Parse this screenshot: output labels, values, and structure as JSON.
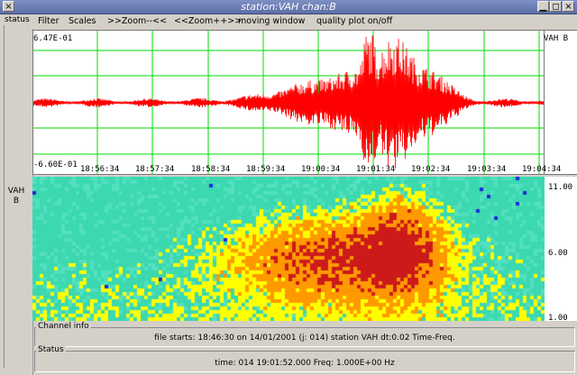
{
  "window": {
    "title": "station:VAH  chan:B",
    "close_glyph": "×",
    "minimize_glyph": "▁",
    "restore_glyph": "◻",
    "close2_glyph": "×"
  },
  "status_tab": "status",
  "menu": [
    {
      "label": "Filter"
    },
    {
      "label": "Scales"
    },
    {
      "label": ">>Zoom--<<"
    },
    {
      "label": "<<Zoom++>>"
    },
    {
      "label": "moving window"
    },
    {
      "label": "quality plot on/off"
    }
  ],
  "waveform": {
    "max_label": "6.47E-01",
    "min_label": "-6.60E-01",
    "station_label": "VAH B",
    "time_ticks": [
      "18:56:34",
      "18:57:34",
      "18:58:34",
      "18:59:34",
      "19:00:34",
      "19:01:34",
      "19:02:34",
      "19:03:34",
      "19:04:34"
    ],
    "colors": {
      "trace": "#ff0000",
      "grid": "#00dd00"
    }
  },
  "spectrogram": {
    "channel_label": "VAH\nB",
    "freq_ticks": [
      "11.00",
      "6.00",
      "1.00"
    ],
    "colors": {
      "low": "#3cd8b0",
      "mid": "#ffff00",
      "high": "#ff9900",
      "peak": "#cc1a1a",
      "noise": "#1a2ad8"
    }
  },
  "channel_info": {
    "legend": "Channel  info",
    "text": "file starts: 18:46:30 on 14/01/2001 (j: 014) station  VAH dt:0.02 Time-Freq."
  },
  "status": {
    "legend": "Status",
    "text": "time: 014 19:01:52.000  Freq: 1.000E+00 Hz"
  }
}
